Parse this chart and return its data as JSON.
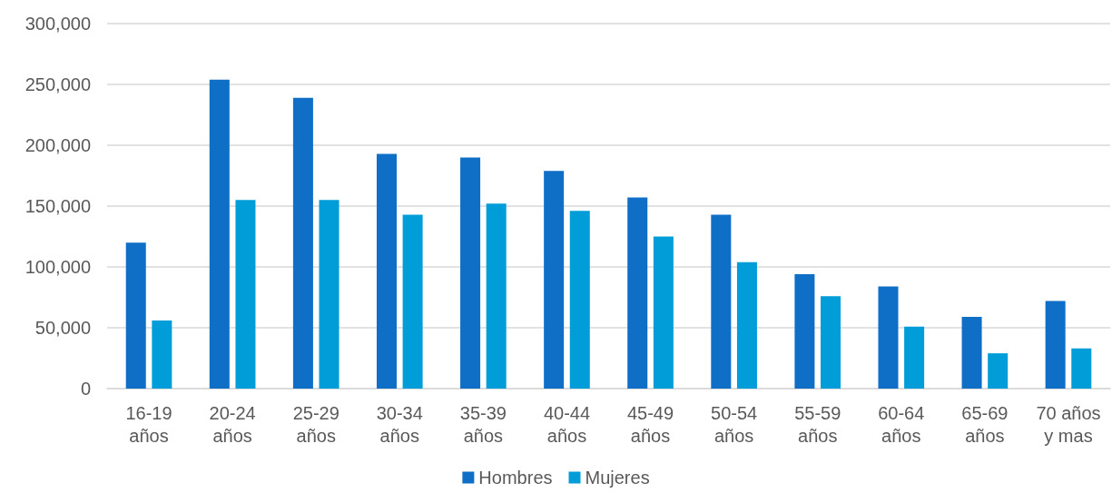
{
  "chart_data": {
    "type": "bar",
    "categories": [
      "16-19\naños",
      "20-24\naños",
      "25-29\naños",
      "30-34\naños",
      "35-39\naños",
      "40-44\naños",
      "45-49\naños",
      "50-54\naños",
      "55-59\naños",
      "60-64\naños",
      "65-69\naños",
      "70 años\ny mas"
    ],
    "series": [
      {
        "name": "Hombres",
        "color": "#0f6fc6",
        "values": [
          120000,
          254000,
          239000,
          193000,
          190000,
          179000,
          157000,
          143000,
          94000,
          84000,
          59000,
          72000
        ]
      },
      {
        "name": "Mujeres",
        "color": "#009dd9",
        "values": [
          56000,
          155000,
          155000,
          143000,
          152000,
          146000,
          125000,
          104000,
          76000,
          51000,
          29000,
          33000
        ]
      }
    ],
    "ylim": [
      0,
      300000
    ],
    "yticks": [
      {
        "value": 0,
        "label": "0"
      },
      {
        "value": 50000,
        "label": "50,000"
      },
      {
        "value": 100000,
        "label": "100,000"
      },
      {
        "value": 150000,
        "label": "150,000"
      },
      {
        "value": 200000,
        "label": "200,000"
      },
      {
        "value": 250000,
        "label": "250,000"
      },
      {
        "value": 300000,
        "label": "300,000"
      }
    ],
    "grid": "y",
    "legend": "bottom"
  }
}
